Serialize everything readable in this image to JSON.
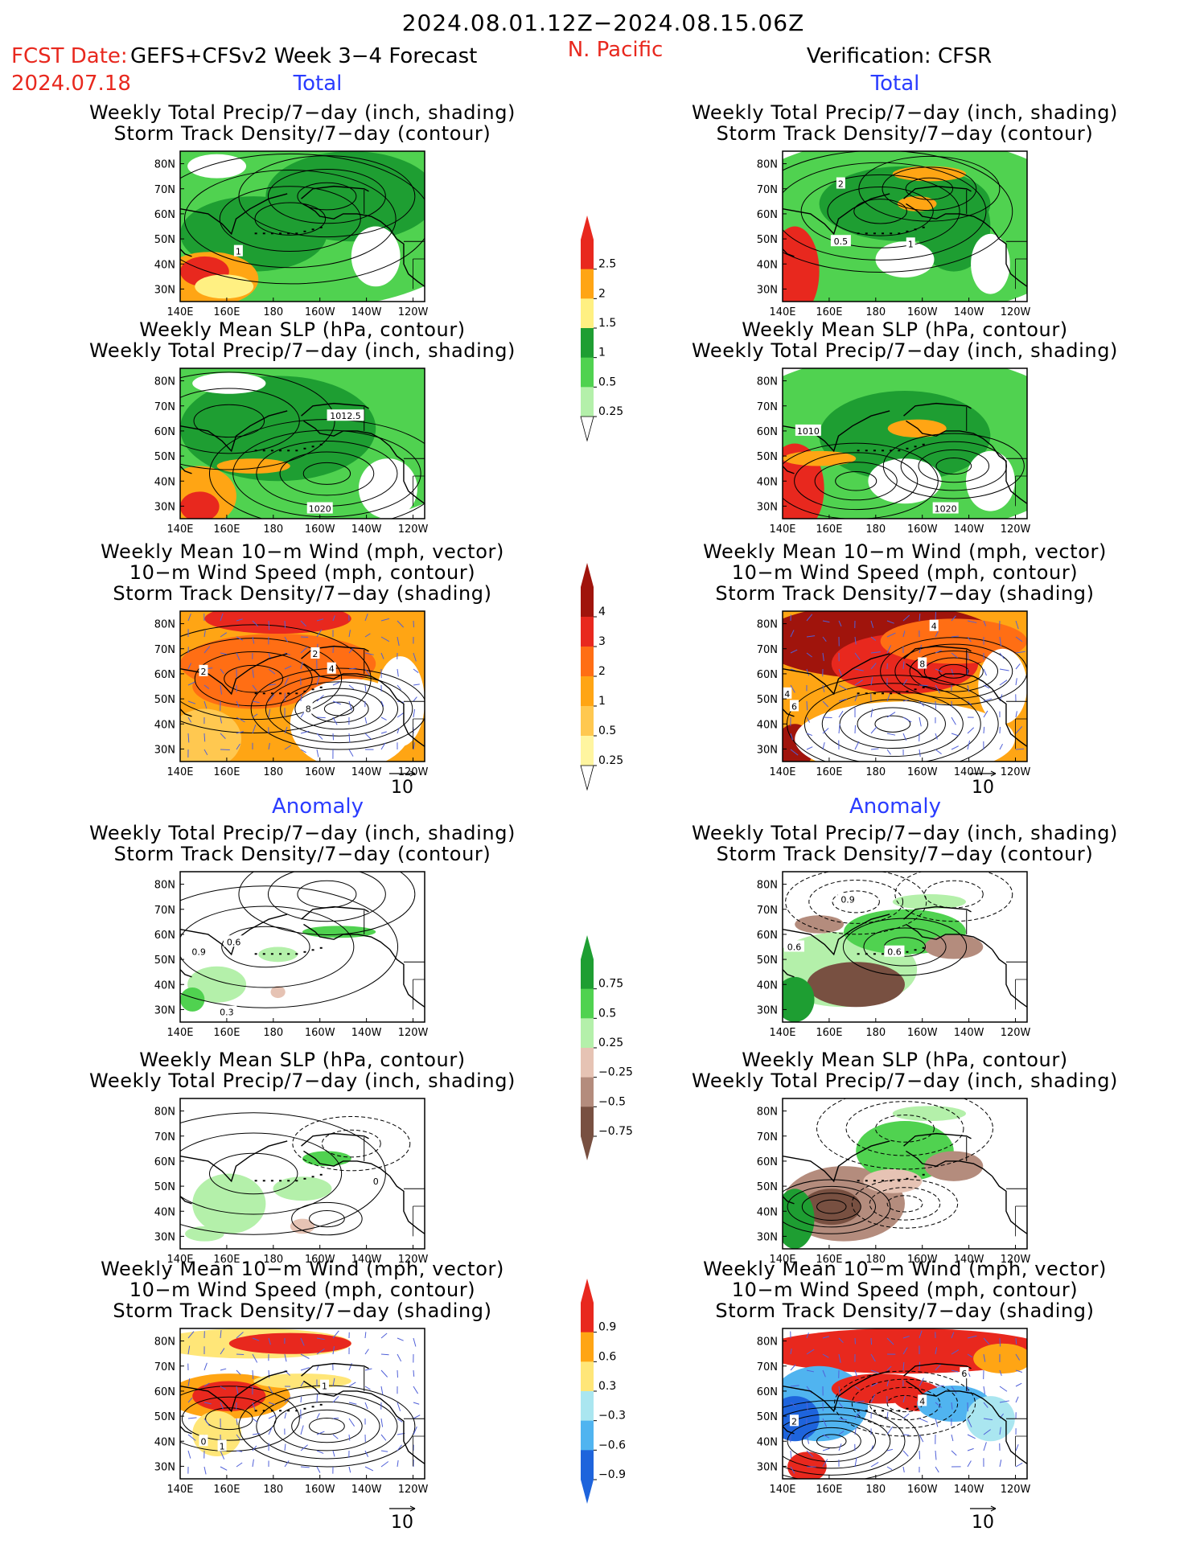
{
  "header": {
    "period": "2024.08.01.12Z−2024.08.15.06Z",
    "fcst_label": "FCST Date:",
    "model": "GEFS+CFSv2 Week 3−4 Forecast",
    "fcst_date": "2024.07.18",
    "region": "N. Pacific",
    "verification": "Verification: CFSR"
  },
  "sections": {
    "total": "Total",
    "anomaly": "Anomaly"
  },
  "titles": {
    "precip_storm": [
      "Weekly Total Precip/7−day (inch, shading)",
      "Storm Track Density/7−day (contour)"
    ],
    "slp_precip": [
      "Weekly Mean SLP (hPa, contour)",
      "Weekly Total Precip/7−day (inch, shading)"
    ],
    "wind": [
      "Weekly Mean 10−m Wind (mph, vector)",
      "10−m Wind Speed (mph, contour)",
      "Storm Track Density/7−day (shading)"
    ]
  },
  "axes": {
    "lat_ticks": [
      "80N",
      "70N",
      "60N",
      "50N",
      "40N",
      "30N"
    ],
    "lon_ticks": [
      "140E",
      "160E",
      "180",
      "160W",
      "140W",
      "120W"
    ]
  },
  "vector_ref": "10",
  "colorbars": [
    {
      "id": "precip-total",
      "labels": [
        "2.5",
        "2",
        "1.5",
        "1",
        "0.5",
        "0.25"
      ],
      "colors": [
        "#e8281e",
        "#ffa514",
        "#fff082",
        "#1e9e32",
        "#50d250",
        "#b4f0aa"
      ]
    },
    {
      "id": "storm-total",
      "labels": [
        "4",
        "3",
        "2",
        "1",
        "0.5",
        "0.25"
      ],
      "colors": [
        "#a0140c",
        "#e8281e",
        "#ff6e14",
        "#ffa514",
        "#ffc850",
        "#fff5a0"
      ]
    },
    {
      "id": "precip-anom",
      "labels": [
        "0.75",
        "0.5",
        "0.25",
        "−0.25",
        "−0.5",
        "−0.75"
      ],
      "colors": [
        "#1e9e32",
        "#50d250",
        "#b4f0aa",
        "#e6c3b4",
        "#b48c7d",
        "#785041"
      ]
    },
    {
      "id": "storm-anom",
      "labels": [
        "0.9",
        "0.6",
        "0.3",
        "−0.3",
        "−0.6",
        "−0.9"
      ],
      "colors": [
        "#e8281e",
        "#ffa514",
        "#ffe678",
        "#aae6f0",
        "#50b4f0",
        "#1e64dc"
      ]
    }
  ],
  "panels": [
    {
      "col": "left",
      "row": 0,
      "labels": [
        {
          "t": "1",
          "lon": 165,
          "lat": 45
        }
      ]
    },
    {
      "col": "right",
      "row": 0,
      "labels": [
        {
          "t": "2",
          "lon": 165,
          "lat": 72
        },
        {
          "t": "0.5",
          "lon": 165,
          "lat": 49
        },
        {
          "t": "1",
          "lon": 195,
          "lat": 48
        }
      ]
    },
    {
      "col": "left",
      "row": 1,
      "labels": [
        {
          "t": "1012.5",
          "lon": 211,
          "lat": 66
        },
        {
          "t": "1020",
          "lon": 200,
          "lat": 29
        }
      ]
    },
    {
      "col": "right",
      "row": 1,
      "labels": [
        {
          "t": "1010",
          "lon": 151,
          "lat": 60
        },
        {
          "t": "1020",
          "lon": 210,
          "lat": 29
        }
      ]
    },
    {
      "col": "left",
      "row": 2,
      "labels": [
        {
          "t": "2",
          "lon": 198,
          "lat": 68
        },
        {
          "t": "2",
          "lon": 150,
          "lat": 61
        },
        {
          "t": "4",
          "lon": 205,
          "lat": 62
        },
        {
          "t": "8",
          "lon": 195,
          "lat": 46
        }
      ]
    },
    {
      "col": "right",
      "row": 2,
      "labels": [
        {
          "t": "4",
          "lon": 205,
          "lat": 79
        },
        {
          "t": "8",
          "lon": 200,
          "lat": 64
        },
        {
          "t": "4",
          "lon": 142,
          "lat": 52
        },
        {
          "t": "6",
          "lon": 145,
          "lat": 47
        }
      ]
    },
    {
      "col": "left",
      "row": 3,
      "labels": [
        {
          "t": "0.9",
          "lon": 148,
          "lat": 53
        },
        {
          "t": "0.6",
          "lon": 163,
          "lat": 57
        },
        {
          "t": "0.3",
          "lon": 160,
          "lat": 29
        }
      ]
    },
    {
      "col": "right",
      "row": 3,
      "labels": [
        {
          "t": "0.9",
          "lon": 168,
          "lat": 74
        },
        {
          "t": "0.6",
          "lon": 145,
          "lat": 55
        },
        {
          "t": "0.6",
          "lon": 188,
          "lat": 53
        }
      ]
    },
    {
      "col": "left",
      "row": 4,
      "labels": [
        {
          "t": "0",
          "lon": 224,
          "lat": 52
        }
      ]
    },
    {
      "col": "right",
      "row": 4,
      "labels": []
    },
    {
      "col": "left",
      "row": 5,
      "labels": [
        {
          "t": "1",
          "lon": 202,
          "lat": 62
        },
        {
          "t": "0",
          "lon": 150,
          "lat": 40
        },
        {
          "t": "1",
          "lon": 158,
          "lat": 38
        }
      ]
    },
    {
      "col": "right",
      "row": 5,
      "labels": [
        {
          "t": "6",
          "lon": 218,
          "lat": 67
        },
        {
          "t": "4",
          "lon": 200,
          "lat": 56
        },
        {
          "t": "2",
          "lon": 145,
          "lat": 48
        }
      ]
    }
  ]
}
